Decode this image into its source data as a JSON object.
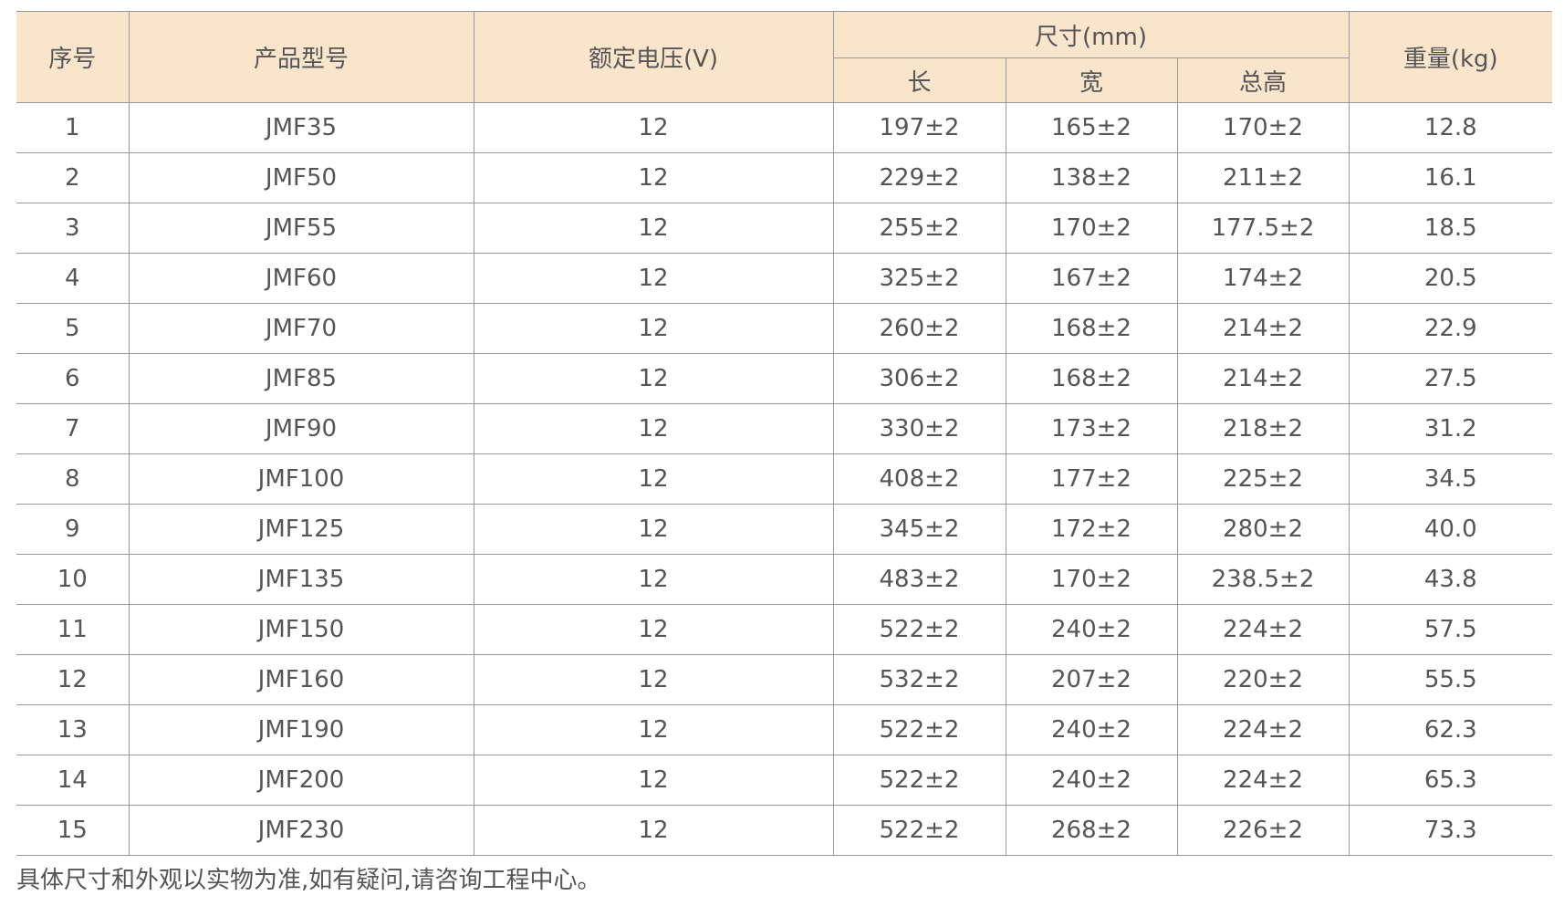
{
  "headers": {
    "index": "序号",
    "model": "产品型号",
    "voltage": "额定电压(V)",
    "size": "尺寸(mm)",
    "length": "长",
    "width": "宽",
    "height": "总高",
    "weight": "重量(kg)"
  },
  "rows": [
    [
      "1",
      "JMF35",
      "12",
      "197±2",
      "165±2",
      "170±2",
      "12.8"
    ],
    [
      "2",
      "JMF50",
      "12",
      "229±2",
      "138±2",
      "211±2",
      "16.1"
    ],
    [
      "3",
      "JMF55",
      "12",
      "255±2",
      "170±2",
      "177.5±2",
      "18.5"
    ],
    [
      "4",
      "JMF60",
      "12",
      "325±2",
      "167±2",
      "174±2",
      "20.5"
    ],
    [
      "5",
      "JMF70",
      "12",
      "260±2",
      "168±2",
      "214±2",
      "22.9"
    ],
    [
      "6",
      "JMF85",
      "12",
      "306±2",
      "168±2",
      "214±2",
      "27.5"
    ],
    [
      "7",
      "JMF90",
      "12",
      "330±2",
      "173±2",
      "218±2",
      "31.2"
    ],
    [
      "8",
      "JMF100",
      "12",
      "408±2",
      "177±2",
      "225±2",
      "34.5"
    ],
    [
      "9",
      "JMF125",
      "12",
      "345±2",
      "172±2",
      "280±2",
      "40.0"
    ],
    [
      "10",
      "JMF135",
      "12",
      "483±2",
      "170±2",
      "238.5±2",
      "43.8"
    ],
    [
      "11",
      "JMF150",
      "12",
      "522±2",
      "240±2",
      "224±2",
      "57.5"
    ],
    [
      "12",
      "JMF160",
      "12",
      "532±2",
      "207±2",
      "220±2",
      "55.5"
    ],
    [
      "13",
      "JMF190",
      "12",
      "522±2",
      "240±2",
      "224±2",
      "62.3"
    ],
    [
      "14",
      "JMF200",
      "12",
      "522±2",
      "240±2",
      "224±2",
      "65.3"
    ],
    [
      "15",
      "JMF230",
      "12",
      "522±2",
      "268±2",
      "226±2",
      "73.3"
    ]
  ],
  "note": "具体尺寸和外观以实物为准,如有疑问,请咨询工程中心。",
  "colors": {
    "header_bg": "#f9e5cc",
    "border": "#999999",
    "text": "#555555"
  }
}
